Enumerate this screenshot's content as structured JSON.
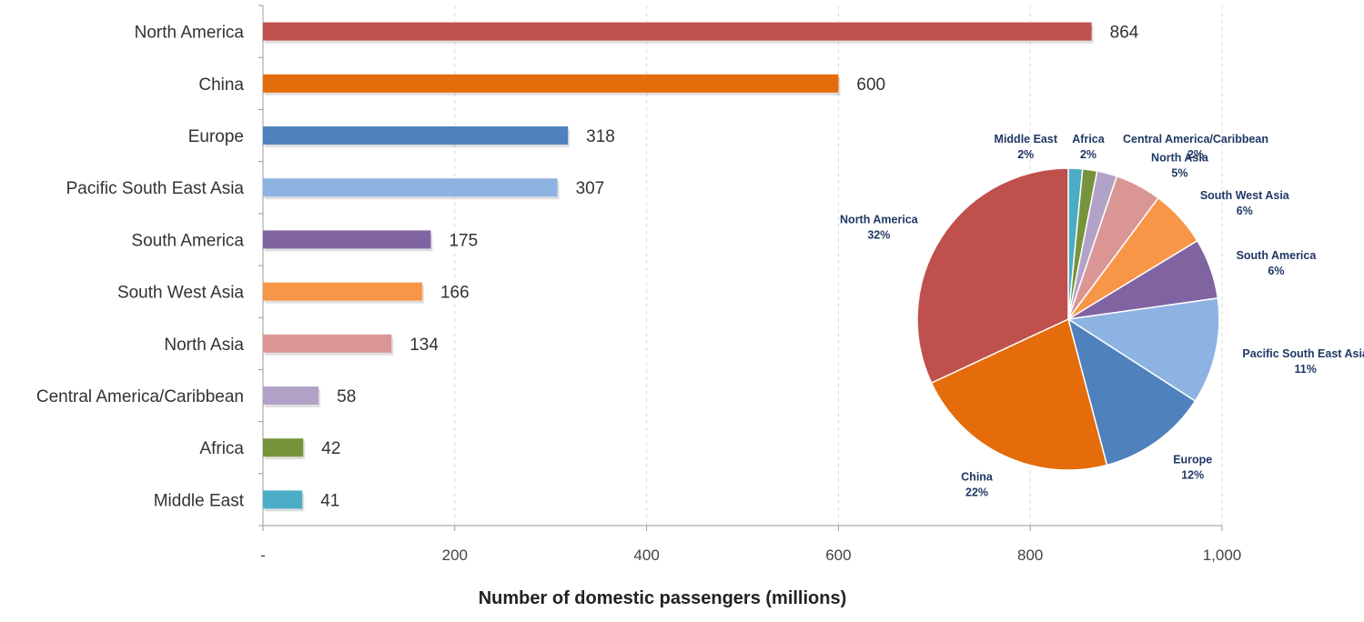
{
  "chart_data": [
    {
      "type": "bar",
      "orientation": "horizontal",
      "categories": [
        "North America",
        "China",
        "Europe",
        "Pacific South East Asia",
        "South America",
        "South West Asia",
        "North Asia",
        "Central America/Caribbean",
        "Africa",
        "Middle East"
      ],
      "values": [
        864,
        600,
        318,
        307,
        175,
        166,
        134,
        58,
        42,
        41
      ],
      "value_labels": [
        "864",
        "600",
        "318",
        "307",
        "175",
        "166",
        "134",
        "58",
        "42",
        "41"
      ],
      "colors": [
        "#c0504d",
        "#e46c0a",
        "#4f81bd",
        "#8db3e2",
        "#8064a2",
        "#f79646",
        "#d99694",
        "#b3a2c7",
        "#77933c",
        "#4bacc6"
      ],
      "xlabel": "Number of domestic passengers (millions)",
      "xlim": [
        0,
        1000
      ],
      "xticks": [
        0,
        200,
        400,
        600,
        800,
        1000
      ],
      "xtick_labels": [
        "-",
        "200",
        "400",
        "600",
        "800",
        "1,000"
      ],
      "grid": "vertical dashed",
      "legend": "none"
    },
    {
      "type": "pie",
      "start": "top, clockwise",
      "slices": [
        {
          "label": "Middle East",
          "percent_label": "2%",
          "value": 41,
          "color": "#4bacc6"
        },
        {
          "label": "Africa",
          "percent_label": "2%",
          "value": 42,
          "color": "#77933c"
        },
        {
          "label": "Central America/Caribbean",
          "percent_label": "2%",
          "value": 58,
          "color": "#b3a2c7"
        },
        {
          "label": "North Asia",
          "percent_label": "5%",
          "value": 134,
          "color": "#d99694"
        },
        {
          "label": "South West Asia",
          "percent_label": "6%",
          "value": 166,
          "color": "#f79646"
        },
        {
          "label": "South America",
          "percent_label": "6%",
          "value": 175,
          "color": "#8064a2"
        },
        {
          "label": "Pacific South East Asia",
          "percent_label": "11%",
          "value": 307,
          "color": "#8db3e2"
        },
        {
          "label": "Europe",
          "percent_label": "12%",
          "value": 318,
          "color": "#4f81bd"
        },
        {
          "label": "China",
          "percent_label": "22%",
          "value": 600,
          "color": "#e46c0a"
        },
        {
          "label": "North America",
          "percent_label": "32%",
          "value": 864,
          "color": "#c0504d"
        }
      ]
    }
  ]
}
